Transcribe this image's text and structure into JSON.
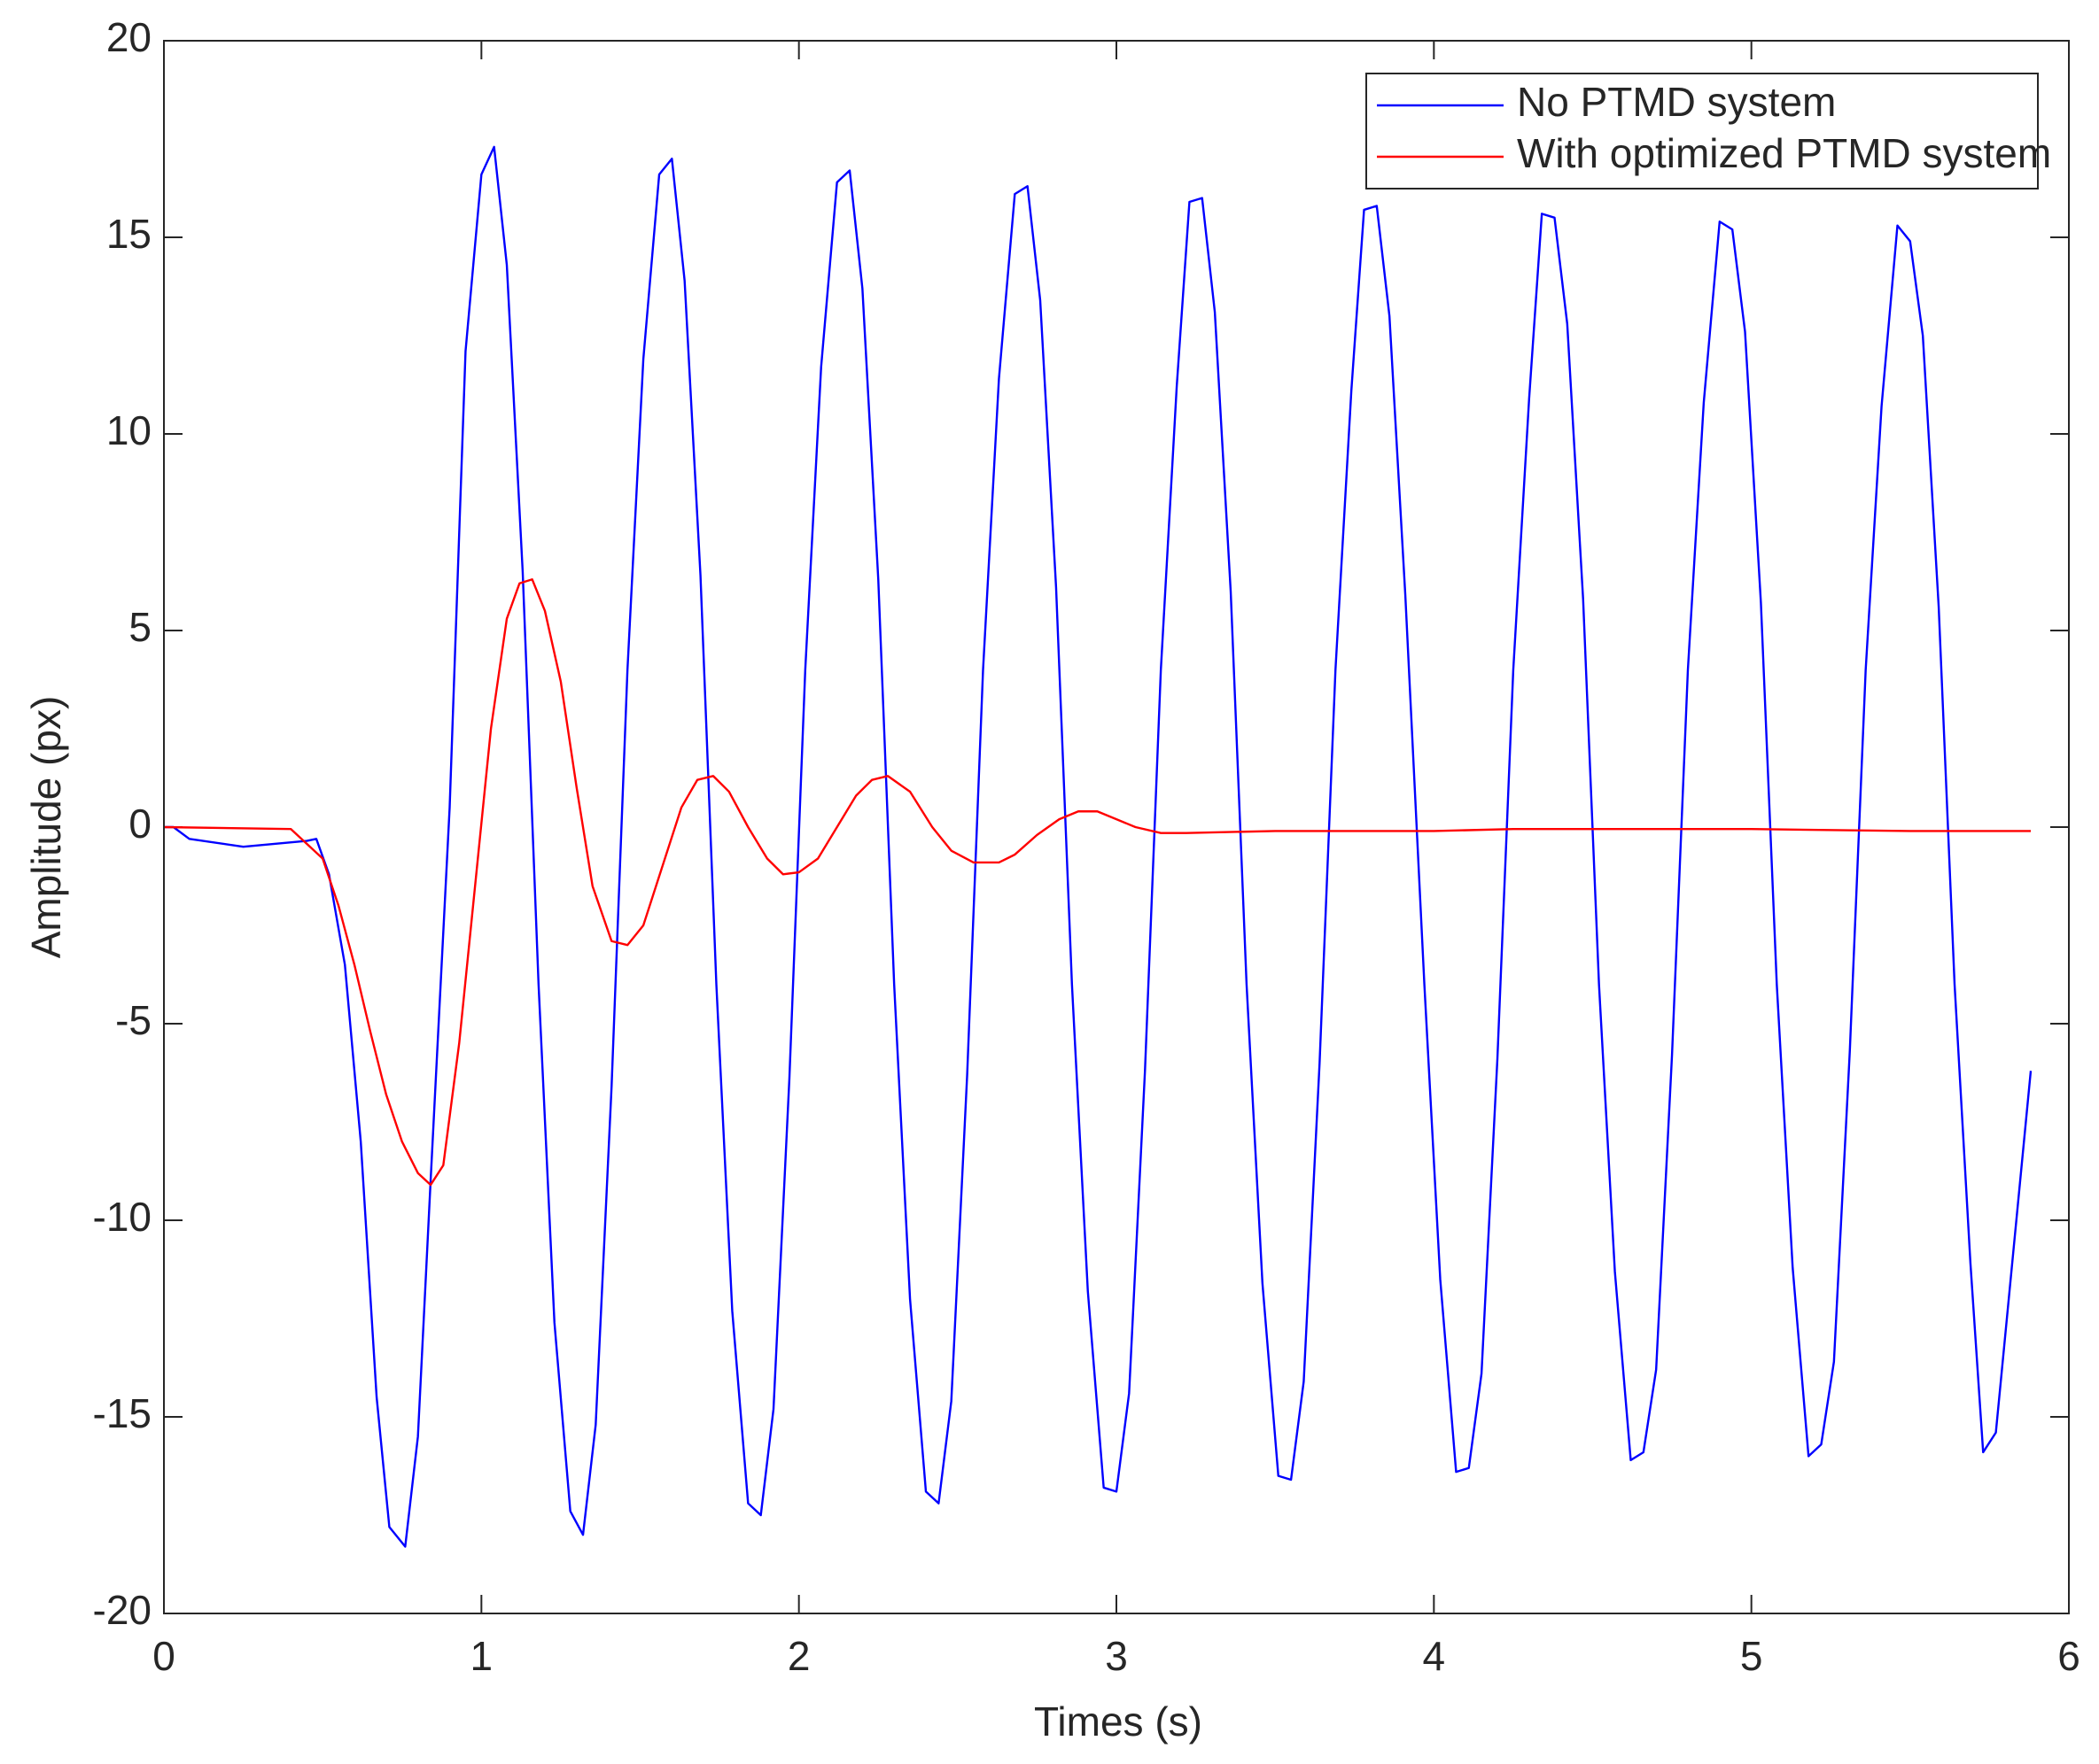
{
  "chart_data": {
    "type": "line",
    "xlabel": "Times (s)",
    "ylabel": "Amplitude (px)",
    "xlim": [
      0,
      6
    ],
    "xticks": [
      0,
      1,
      2,
      3,
      4,
      5,
      6
    ],
    "ylim": [
      -20,
      20
    ],
    "yticks": [
      -20,
      -15,
      -10,
      -5,
      0,
      5,
      10,
      15,
      20
    ],
    "grid": false,
    "legend": "upper right",
    "series": [
      {
        "name": "No PTMD system",
        "color": "#0000ff",
        "x": [
          0,
          0.03,
          0.08,
          0.25,
          0.45,
          0.48,
          0.52,
          0.57,
          0.62,
          0.67,
          0.71,
          0.76,
          0.8,
          0.84,
          0.9,
          0.95,
          1.0,
          1.04,
          1.08,
          1.13,
          1.18,
          1.23,
          1.28,
          1.32,
          1.36,
          1.41,
          1.46,
          1.51,
          1.56,
          1.6,
          1.64,
          1.69,
          1.74,
          1.79,
          1.84,
          1.88,
          1.92,
          1.97,
          2.02,
          2.07,
          2.12,
          2.16,
          2.2,
          2.25,
          2.3,
          2.35,
          2.4,
          2.44,
          2.48,
          2.53,
          2.58,
          2.63,
          2.68,
          2.72,
          2.76,
          2.81,
          2.86,
          2.91,
          2.96,
          3.0,
          3.04,
          3.09,
          3.14,
          3.19,
          3.23,
          3.27,
          3.31,
          3.36,
          3.41,
          3.46,
          3.51,
          3.55,
          3.59,
          3.64,
          3.69,
          3.74,
          3.78,
          3.82,
          3.86,
          3.91,
          3.97,
          4.02,
          4.07,
          4.11,
          4.15,
          4.2,
          4.25,
          4.3,
          4.34,
          4.38,
          4.42,
          4.47,
          4.52,
          4.57,
          4.62,
          4.66,
          4.7,
          4.75,
          4.8,
          4.85,
          4.9,
          4.94,
          4.98,
          5.03,
          5.08,
          5.13,
          5.18,
          5.22,
          5.26,
          5.31,
          5.36,
          5.41,
          5.46,
          5.5,
          5.54,
          5.59,
          5.64,
          5.69,
          5.73,
          5.77,
          5.88
        ],
        "values": [
          0,
          0,
          -0.3,
          -0.5,
          -0.35,
          -0.3,
          -1.2,
          -3.5,
          -8,
          -14.5,
          -17.8,
          -18.3,
          -15.5,
          -9,
          0.5,
          12.1,
          16.6,
          17.3,
          14.3,
          6.5,
          -4,
          -12.6,
          -17.4,
          -18,
          -15.2,
          -6.6,
          4,
          11.9,
          16.6,
          17.0,
          13.9,
          6.4,
          -4,
          -12.3,
          -17.2,
          -17.5,
          -14.8,
          -6.4,
          4,
          11.7,
          16.4,
          16.7,
          13.7,
          6.3,
          -4,
          -12,
          -16.9,
          -17.2,
          -14.6,
          -6.3,
          4,
          11.4,
          16.1,
          16.3,
          13.4,
          6.1,
          -4,
          -11.8,
          -16.8,
          -16.9,
          -14.4,
          -6.2,
          4,
          11.2,
          15.9,
          16.0,
          13.1,
          6,
          -4,
          -11.6,
          -16.5,
          -16.6,
          -14.1,
          -6,
          4,
          11.1,
          15.7,
          15.8,
          13,
          5.9,
          -4,
          -11.5,
          -16.4,
          -16.3,
          -13.9,
          -5.9,
          4,
          10.9,
          15.6,
          15.5,
          12.8,
          5.8,
          -4,
          -11.3,
          -16.1,
          -15.9,
          -13.8,
          -5.8,
          4,
          10.8,
          15.4,
          15.2,
          12.6,
          5.7,
          -4,
          -11.2,
          -16,
          -15.7,
          -13.6,
          -5.7,
          4,
          10.7,
          15.3,
          14.9,
          12.5,
          5.6,
          -4,
          -11.1,
          -15.9,
          -15.4,
          -6.2
        ]
      },
      {
        "name": "With optimized PTMD system",
        "color": "#ff0000",
        "x": [
          0,
          0.4,
          0.5,
          0.55,
          0.6,
          0.65,
          0.7,
          0.75,
          0.8,
          0.84,
          0.88,
          0.93,
          0.98,
          1.03,
          1.08,
          1.12,
          1.16,
          1.2,
          1.25,
          1.3,
          1.35,
          1.41,
          1.46,
          1.51,
          1.57,
          1.63,
          1.68,
          1.73,
          1.78,
          1.84,
          1.9,
          1.95,
          2.0,
          2.06,
          2.12,
          2.18,
          2.23,
          2.28,
          2.35,
          2.42,
          2.48,
          2.55,
          2.63,
          2.68,
          2.75,
          2.82,
          2.88,
          2.94,
          3.0,
          3.06,
          3.14,
          3.22,
          3.5,
          4.0,
          4.25,
          5.0,
          5.5,
          5.88
        ],
        "values": [
          0,
          -0.05,
          -0.8,
          -2,
          -3.5,
          -5.2,
          -6.8,
          -8,
          -8.8,
          -9.1,
          -8.6,
          -5.5,
          -1.5,
          2.5,
          5.3,
          6.2,
          6.3,
          5.5,
          3.7,
          1,
          -1.5,
          -2.9,
          -3,
          -2.5,
          -1,
          0.5,
          1.2,
          1.3,
          0.9,
          0,
          -0.8,
          -1.2,
          -1.15,
          -0.8,
          0,
          0.8,
          1.2,
          1.3,
          0.9,
          0,
          -0.6,
          -0.9,
          -0.9,
          -0.7,
          -0.2,
          0.2,
          0.4,
          0.4,
          0.2,
          0,
          -0.15,
          -0.15,
          -0.1,
          -0.1,
          -0.05,
          -0.05,
          -0.1,
          -0.1
        ]
      }
    ]
  }
}
